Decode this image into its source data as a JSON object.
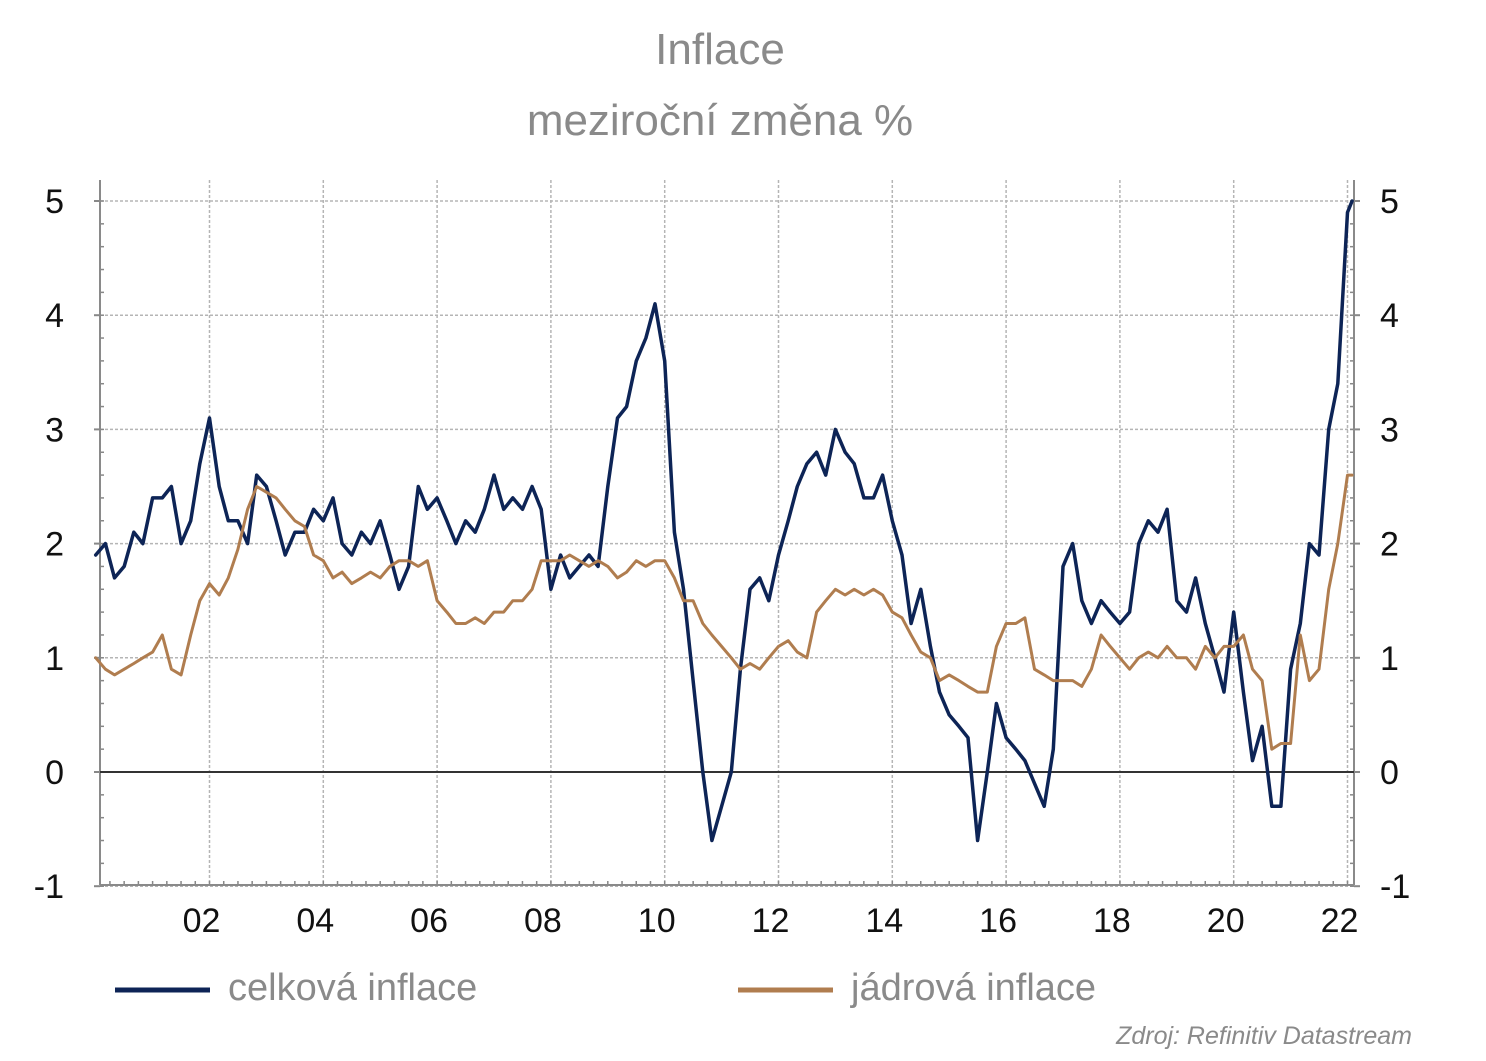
{
  "chart_data": {
    "type": "line",
    "title": "Inflace",
    "subtitle": "meziroční změna %",
    "source": "Zdroj: Refinitiv Datastream",
    "x_tick_labels": [
      "02",
      "04",
      "06",
      "08",
      "10",
      "12",
      "14",
      "16",
      "18",
      "20",
      "22"
    ],
    "y_tick_labels": [
      "-1",
      "0",
      "1",
      "2",
      "3",
      "4",
      "5"
    ],
    "ylim": [
      -1,
      5
    ],
    "y_axis_left_and_right": true,
    "grid": true,
    "legend_placement": "bottom",
    "series": [
      {
        "name": "celková inflace",
        "color": "#0d2456",
        "points": [
          [
            2000.0,
            1.9
          ],
          [
            2000.17,
            2.0
          ],
          [
            2000.33,
            1.7
          ],
          [
            2000.5,
            1.8
          ],
          [
            2000.67,
            2.1
          ],
          [
            2000.83,
            2.0
          ],
          [
            2001.0,
            2.4
          ],
          [
            2001.17,
            2.4
          ],
          [
            2001.33,
            2.5
          ],
          [
            2001.5,
            2.0
          ],
          [
            2001.67,
            2.2
          ],
          [
            2001.83,
            2.7
          ],
          [
            2002.0,
            3.1
          ],
          [
            2002.17,
            2.5
          ],
          [
            2002.33,
            2.2
          ],
          [
            2002.5,
            2.2
          ],
          [
            2002.67,
            2.0
          ],
          [
            2002.83,
            2.6
          ],
          [
            2003.0,
            2.5
          ],
          [
            2003.17,
            2.2
          ],
          [
            2003.33,
            1.9
          ],
          [
            2003.5,
            2.1
          ],
          [
            2003.67,
            2.1
          ],
          [
            2003.83,
            2.3
          ],
          [
            2004.0,
            2.2
          ],
          [
            2004.17,
            2.4
          ],
          [
            2004.33,
            2.0
          ],
          [
            2004.5,
            1.9
          ],
          [
            2004.67,
            2.1
          ],
          [
            2004.83,
            2.0
          ],
          [
            2005.0,
            2.2
          ],
          [
            2005.17,
            1.9
          ],
          [
            2005.33,
            1.6
          ],
          [
            2005.5,
            1.8
          ],
          [
            2005.67,
            2.5
          ],
          [
            2005.83,
            2.3
          ],
          [
            2006.0,
            2.4
          ],
          [
            2006.17,
            2.2
          ],
          [
            2006.33,
            2.0
          ],
          [
            2006.5,
            2.2
          ],
          [
            2006.67,
            2.1
          ],
          [
            2006.83,
            2.3
          ],
          [
            2007.0,
            2.6
          ],
          [
            2007.17,
            2.3
          ],
          [
            2007.33,
            2.4
          ],
          [
            2007.5,
            2.3
          ],
          [
            2007.67,
            2.5
          ],
          [
            2007.83,
            2.3
          ],
          [
            2008.0,
            1.6
          ],
          [
            2008.17,
            1.9
          ],
          [
            2008.33,
            1.7
          ],
          [
            2008.5,
            1.8
          ],
          [
            2008.67,
            1.9
          ],
          [
            2008.83,
            1.8
          ],
          [
            2009.0,
            2.5
          ],
          [
            2009.17,
            3.1
          ],
          [
            2009.33,
            3.2
          ],
          [
            2009.5,
            3.6
          ],
          [
            2009.67,
            3.8
          ],
          [
            2009.83,
            4.1
          ],
          [
            2010.0,
            3.6
          ],
          [
            2010.17,
            2.1
          ],
          [
            2010.33,
            1.6
          ],
          [
            2010.5,
            0.8
          ],
          [
            2010.67,
            0.0
          ],
          [
            2010.83,
            -0.6
          ],
          [
            2011.0,
            -0.3
          ],
          [
            2011.17,
            0.0
          ],
          [
            2011.33,
            0.9
          ],
          [
            2011.5,
            1.6
          ],
          [
            2011.67,
            1.7
          ],
          [
            2011.83,
            1.5
          ],
          [
            2012.0,
            1.9
          ],
          [
            2012.17,
            2.2
          ],
          [
            2012.33,
            2.5
          ],
          [
            2012.5,
            2.7
          ],
          [
            2012.67,
            2.8
          ],
          [
            2012.83,
            2.6
          ],
          [
            2013.0,
            3.0
          ],
          [
            2013.17,
            2.8
          ],
          [
            2013.33,
            2.7
          ],
          [
            2013.5,
            2.4
          ],
          [
            2013.67,
            2.4
          ],
          [
            2013.83,
            2.6
          ],
          [
            2014.0,
            2.2
          ],
          [
            2014.17,
            1.9
          ],
          [
            2014.33,
            1.3
          ],
          [
            2014.5,
            1.6
          ],
          [
            2014.67,
            1.1
          ],
          [
            2014.83,
            0.7
          ],
          [
            2015.0,
            0.5
          ],
          [
            2015.17,
            0.4
          ],
          [
            2015.33,
            0.3
          ],
          [
            2015.5,
            -0.6
          ],
          [
            2015.67,
            0.0
          ],
          [
            2015.83,
            0.6
          ],
          [
            2016.0,
            0.3
          ],
          [
            2016.17,
            0.2
          ],
          [
            2016.33,
            0.1
          ],
          [
            2016.5,
            -0.1
          ],
          [
            2016.67,
            -0.3
          ],
          [
            2016.83,
            0.2
          ],
          [
            2017.0,
            1.8
          ],
          [
            2017.17,
            2.0
          ],
          [
            2017.33,
            1.5
          ],
          [
            2017.5,
            1.3
          ],
          [
            2017.67,
            1.5
          ],
          [
            2017.83,
            1.4
          ],
          [
            2018.0,
            1.3
          ],
          [
            2018.17,
            1.4
          ],
          [
            2018.33,
            2.0
          ],
          [
            2018.5,
            2.2
          ],
          [
            2018.67,
            2.1
          ],
          [
            2018.83,
            2.3
          ],
          [
            2019.0,
            1.5
          ],
          [
            2019.17,
            1.4
          ],
          [
            2019.33,
            1.7
          ],
          [
            2019.5,
            1.3
          ],
          [
            2019.67,
            1.0
          ],
          [
            2019.83,
            0.7
          ],
          [
            2020.0,
            1.4
          ],
          [
            2020.17,
            0.7
          ],
          [
            2020.33,
            0.1
          ],
          [
            2020.5,
            0.4
          ],
          [
            2020.67,
            -0.3
          ],
          [
            2020.83,
            -0.3
          ],
          [
            2021.0,
            0.9
          ],
          [
            2021.17,
            1.3
          ],
          [
            2021.33,
            2.0
          ],
          [
            2021.5,
            1.9
          ],
          [
            2021.67,
            3.0
          ],
          [
            2021.83,
            3.4
          ],
          [
            2022.0,
            4.9
          ],
          [
            2022.08,
            5.0
          ]
        ]
      },
      {
        "name": "jádrová inflace",
        "color": "#b07d4f",
        "points": [
          [
            2000.0,
            1.0
          ],
          [
            2000.17,
            0.9
          ],
          [
            2000.33,
            0.85
          ],
          [
            2000.5,
            0.9
          ],
          [
            2000.67,
            0.95
          ],
          [
            2000.83,
            1.0
          ],
          [
            2001.0,
            1.05
          ],
          [
            2001.17,
            1.2
          ],
          [
            2001.33,
            0.9
          ],
          [
            2001.5,
            0.85
          ],
          [
            2001.67,
            1.2
          ],
          [
            2001.83,
            1.5
          ],
          [
            2002.0,
            1.65
          ],
          [
            2002.17,
            1.55
          ],
          [
            2002.33,
            1.7
          ],
          [
            2002.5,
            1.95
          ],
          [
            2002.67,
            2.3
          ],
          [
            2002.83,
            2.5
          ],
          [
            2003.0,
            2.45
          ],
          [
            2003.17,
            2.4
          ],
          [
            2003.33,
            2.3
          ],
          [
            2003.5,
            2.2
          ],
          [
            2003.67,
            2.15
          ],
          [
            2003.83,
            1.9
          ],
          [
            2004.0,
            1.85
          ],
          [
            2004.17,
            1.7
          ],
          [
            2004.33,
            1.75
          ],
          [
            2004.5,
            1.65
          ],
          [
            2004.67,
            1.7
          ],
          [
            2004.83,
            1.75
          ],
          [
            2005.0,
            1.7
          ],
          [
            2005.17,
            1.8
          ],
          [
            2005.33,
            1.85
          ],
          [
            2005.5,
            1.85
          ],
          [
            2005.67,
            1.8
          ],
          [
            2005.83,
            1.85
          ],
          [
            2006.0,
            1.5
          ],
          [
            2006.17,
            1.4
          ],
          [
            2006.33,
            1.3
          ],
          [
            2006.5,
            1.3
          ],
          [
            2006.67,
            1.35
          ],
          [
            2006.83,
            1.3
          ],
          [
            2007.0,
            1.4
          ],
          [
            2007.17,
            1.4
          ],
          [
            2007.33,
            1.5
          ],
          [
            2007.5,
            1.5
          ],
          [
            2007.67,
            1.6
          ],
          [
            2007.83,
            1.85
          ],
          [
            2008.0,
            1.85
          ],
          [
            2008.17,
            1.85
          ],
          [
            2008.33,
            1.9
          ],
          [
            2008.5,
            1.85
          ],
          [
            2008.67,
            1.8
          ],
          [
            2008.83,
            1.85
          ],
          [
            2009.0,
            1.8
          ],
          [
            2009.17,
            1.7
          ],
          [
            2009.33,
            1.75
          ],
          [
            2009.5,
            1.85
          ],
          [
            2009.67,
            1.8
          ],
          [
            2009.83,
            1.85
          ],
          [
            2010.0,
            1.85
          ],
          [
            2010.17,
            1.7
          ],
          [
            2010.33,
            1.5
          ],
          [
            2010.5,
            1.5
          ],
          [
            2010.67,
            1.3
          ],
          [
            2010.83,
            1.2
          ],
          [
            2011.0,
            1.1
          ],
          [
            2011.17,
            1.0
          ],
          [
            2011.33,
            0.9
          ],
          [
            2011.5,
            0.95
          ],
          [
            2011.67,
            0.9
          ],
          [
            2011.83,
            1.0
          ],
          [
            2012.0,
            1.1
          ],
          [
            2012.17,
            1.15
          ],
          [
            2012.33,
            1.05
          ],
          [
            2012.5,
            1.0
          ],
          [
            2012.67,
            1.4
          ],
          [
            2012.83,
            1.5
          ],
          [
            2013.0,
            1.6
          ],
          [
            2013.17,
            1.55
          ],
          [
            2013.33,
            1.6
          ],
          [
            2013.5,
            1.55
          ],
          [
            2013.67,
            1.6
          ],
          [
            2013.83,
            1.55
          ],
          [
            2014.0,
            1.4
          ],
          [
            2014.17,
            1.35
          ],
          [
            2014.33,
            1.2
          ],
          [
            2014.5,
            1.05
          ],
          [
            2014.67,
            1.0
          ],
          [
            2014.83,
            0.8
          ],
          [
            2015.0,
            0.85
          ],
          [
            2015.17,
            0.8
          ],
          [
            2015.33,
            0.75
          ],
          [
            2015.5,
            0.7
          ],
          [
            2015.67,
            0.7
          ],
          [
            2015.83,
            1.1
          ],
          [
            2016.0,
            1.3
          ],
          [
            2016.17,
            1.3
          ],
          [
            2016.33,
            1.35
          ],
          [
            2016.5,
            0.9
          ],
          [
            2016.67,
            0.85
          ],
          [
            2016.83,
            0.8
          ],
          [
            2017.0,
            0.8
          ],
          [
            2017.17,
            0.8
          ],
          [
            2017.33,
            0.75
          ],
          [
            2017.5,
            0.9
          ],
          [
            2017.67,
            1.2
          ],
          [
            2017.83,
            1.1
          ],
          [
            2018.0,
            1.0
          ],
          [
            2018.17,
            0.9
          ],
          [
            2018.33,
            1.0
          ],
          [
            2018.5,
            1.05
          ],
          [
            2018.67,
            1.0
          ],
          [
            2018.83,
            1.1
          ],
          [
            2019.0,
            1.0
          ],
          [
            2019.17,
            1.0
          ],
          [
            2019.33,
            0.9
          ],
          [
            2019.5,
            1.1
          ],
          [
            2019.67,
            1.0
          ],
          [
            2019.83,
            1.1
          ],
          [
            2020.0,
            1.1
          ],
          [
            2020.17,
            1.2
          ],
          [
            2020.33,
            0.9
          ],
          [
            2020.5,
            0.8
          ],
          [
            2020.67,
            0.2
          ],
          [
            2020.83,
            0.25
          ],
          [
            2021.0,
            0.25
          ],
          [
            2021.17,
            1.2
          ],
          [
            2021.33,
            0.8
          ],
          [
            2021.5,
            0.9
          ],
          [
            2021.67,
            1.6
          ],
          [
            2021.83,
            2.0
          ],
          [
            2022.0,
            2.6
          ],
          [
            2022.08,
            2.6
          ]
        ]
      }
    ]
  }
}
